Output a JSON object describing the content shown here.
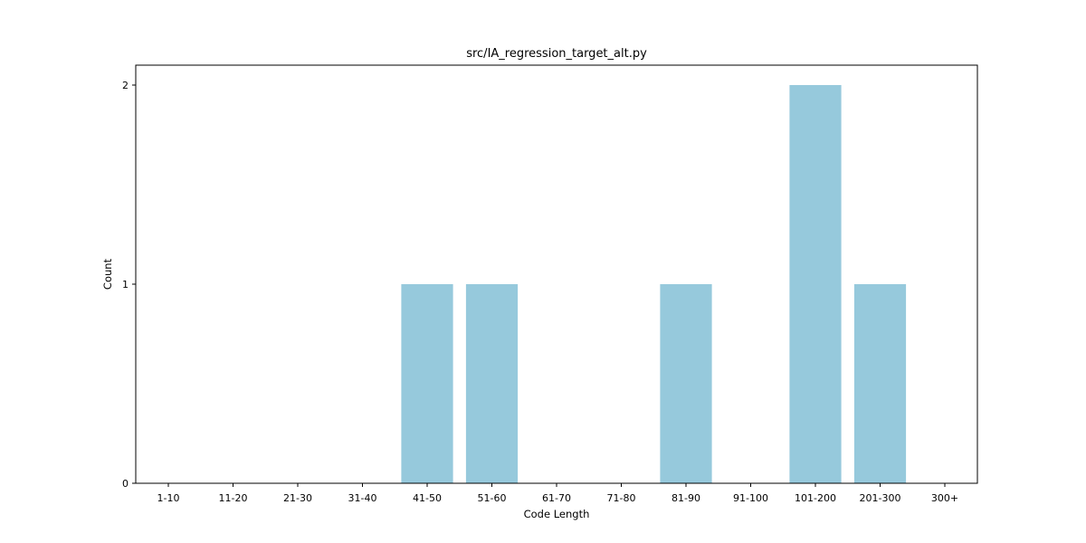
{
  "chart_data": {
    "type": "bar",
    "title": "src/IA_regression_target_alt.py",
    "xlabel": "Code Length",
    "ylabel": "Count",
    "categories": [
      "1-10",
      "11-20",
      "21-30",
      "31-40",
      "41-50",
      "51-60",
      "61-70",
      "71-80",
      "81-90",
      "91-100",
      "101-200",
      "201-300",
      "300+"
    ],
    "values": [
      0,
      0,
      0,
      0,
      1,
      1,
      0,
      0,
      1,
      0,
      2,
      1,
      0
    ],
    "yticks": [
      "0",
      "1",
      "2"
    ],
    "ylim": [
      0,
      2
    ],
    "grid": false,
    "bar_color": "#96c9dc"
  }
}
